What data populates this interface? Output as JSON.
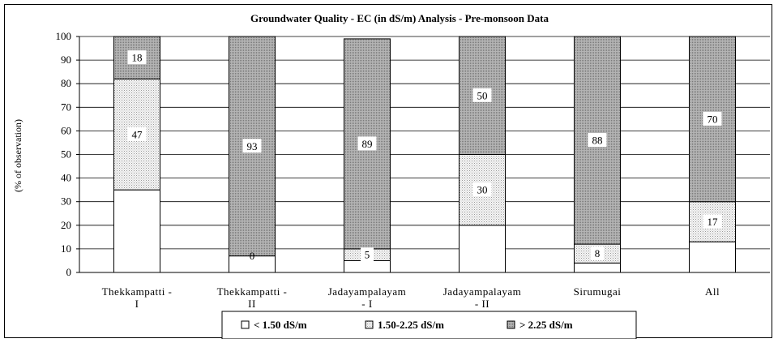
{
  "chart_data": {
    "type": "bar",
    "stacked": true,
    "title": "Groundwater Quality - EC (in dS/m) Analysis  - Pre-monsoon Data",
    "ylabel": "(% of observation)",
    "xlabel": "",
    "ylim": [
      0,
      100
    ],
    "yticks": [
      0,
      10,
      20,
      30,
      40,
      50,
      60,
      70,
      80,
      90,
      100
    ],
    "grid": true,
    "legend_position": "bottom",
    "categories": [
      [
        "Thekkampatti -",
        "I"
      ],
      [
        "Thekkampatti -",
        "II"
      ],
      [
        "Jadayampalayam",
        "- I"
      ],
      [
        "Jadayampalayam",
        "- II"
      ],
      [
        "Sirumugai"
      ],
      [
        "All"
      ]
    ],
    "series": [
      {
        "name": "< 1.50 dS/m",
        "color": "#ffffff",
        "pattern": "none",
        "values": [
          35,
          7,
          5,
          20,
          4,
          13
        ],
        "labels": [
          null,
          null,
          null,
          null,
          null,
          null
        ]
      },
      {
        "name": "1.50-2.25 dS/m",
        "color": "#e6e6e6",
        "pattern": "fine-dots",
        "values": [
          47,
          0,
          5,
          30,
          8,
          17
        ],
        "labels": [
          "47",
          "0",
          "5",
          "30",
          "8",
          "17"
        ]
      },
      {
        "name": "> 2.25 dS/m",
        "color": "#a8a8a8",
        "pattern": "dense-dots",
        "values": [
          18,
          93,
          89,
          50,
          88,
          70
        ],
        "labels": [
          "18",
          "93",
          "89",
          "50",
          "88",
          "70"
        ]
      }
    ]
  }
}
